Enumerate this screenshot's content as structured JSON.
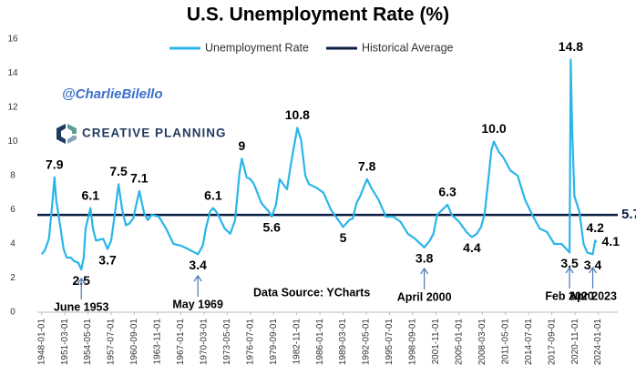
{
  "chart_data": {
    "type": "line",
    "title": "U.S. Unemployment Rate (%)",
    "x": [
      "1948-01-01",
      "1948-06-01",
      "1949-01-01",
      "1949-06-01",
      "1949-10-01",
      "1950-01-01",
      "1950-06-01",
      "1951-01-01",
      "1951-06-01",
      "1952-01-01",
      "1952-06-01",
      "1953-01-01",
      "1953-06-01",
      "1953-10-01",
      "1954-01-01",
      "1954-09-01",
      "1955-01-01",
      "1955-06-01",
      "1956-06-01",
      "1957-01-01",
      "1957-07-01",
      "1958-01-01",
      "1958-07-01",
      "1959-01-01",
      "1959-07-01",
      "1960-01-01",
      "1960-07-01",
      "1961-05-01",
      "1962-01-01",
      "1962-07-01",
      "1963-01-01",
      "1964-01-01",
      "1965-01-01",
      "1966-01-01",
      "1967-01-01",
      "1968-01-01",
      "1969-05-01",
      "1970-01-01",
      "1970-06-01",
      "1971-01-01",
      "1971-06-01",
      "1972-01-01",
      "1973-01-01",
      "1973-10-01",
      "1974-06-01",
      "1975-01-01",
      "1975-05-01",
      "1976-01-01",
      "1976-07-01",
      "1977-01-01",
      "1978-01-01",
      "1979-01-01",
      "1979-06-01",
      "1980-01-01",
      "1980-07-01",
      "1981-01-01",
      "1981-07-01",
      "1982-01-01",
      "1982-06-01",
      "1982-12-01",
      "1983-06-01",
      "1984-01-01",
      "1984-07-01",
      "1985-07-01",
      "1986-07-01",
      "1987-07-01",
      "1988-07-01",
      "1989-03-01",
      "1990-01-01",
      "1990-07-01",
      "1991-01-01",
      "1991-07-01",
      "1992-06-01",
      "1993-01-01",
      "1994-01-01",
      "1995-01-01",
      "1996-01-01",
      "1997-01-01",
      "1998-01-01",
      "1999-01-01",
      "2000-04-01",
      "2001-01-01",
      "2001-07-01",
      "2002-01-01",
      "2003-06-01",
      "2004-01-01",
      "2005-01-01",
      "2006-01-01",
      "2006-10-01",
      "2007-06-01",
      "2008-01-01",
      "2008-07-01",
      "2009-01-01",
      "2009-06-01",
      "2009-10-01",
      "2010-06-01",
      "2011-01-01",
      "2012-01-01",
      "2013-01-01",
      "2014-01-01",
      "2015-01-01",
      "2016-01-01",
      "2017-01-01",
      "2018-01-01",
      "2019-01-01",
      "2020-02-01",
      "2020-04-01",
      "2020-06-01",
      "2020-10-01",
      "2021-06-01",
      "2022-01-01",
      "2022-07-01",
      "2023-04-01",
      "2023-08-01",
      "2023-10-01"
    ],
    "series": [
      {
        "name": "Unemployment Rate",
        "color": "#29b5e8",
        "values": [
          3.4,
          3.6,
          4.3,
          6.2,
          7.9,
          6.5,
          5.4,
          3.7,
          3.2,
          3.2,
          3.0,
          2.9,
          2.5,
          3.2,
          4.9,
          6.1,
          4.9,
          4.2,
          4.3,
          3.7,
          4.2,
          5.8,
          7.5,
          6.0,
          5.1,
          5.2,
          5.5,
          7.1,
          5.8,
          5.4,
          5.7,
          5.6,
          4.9,
          4.0,
          3.9,
          3.7,
          3.4,
          3.9,
          4.9,
          5.9,
          6.1,
          5.8,
          4.9,
          4.6,
          5.4,
          8.1,
          9.0,
          7.9,
          7.8,
          7.5,
          6.4,
          5.9,
          5.6,
          6.3,
          7.8,
          7.5,
          7.2,
          8.6,
          9.6,
          10.8,
          10.1,
          8.0,
          7.5,
          7.3,
          7.0,
          6.0,
          5.4,
          5.0,
          5.4,
          5.5,
          6.4,
          6.8,
          7.8,
          7.3,
          6.6,
          5.6,
          5.6,
          5.3,
          4.6,
          4.3,
          3.8,
          4.2,
          4.6,
          5.7,
          6.3,
          5.7,
          5.3,
          4.7,
          4.4,
          4.6,
          5.0,
          5.8,
          7.8,
          9.5,
          10.0,
          9.4,
          9.1,
          8.3,
          8.0,
          6.6,
          5.7,
          4.9,
          4.7,
          4.0,
          4.0,
          3.5,
          14.8,
          11.0,
          6.8,
          5.9,
          4.0,
          3.5,
          3.4,
          4.2,
          4.1
        ]
      }
    ],
    "reference_line": {
      "name": "Historical Average",
      "color": "#0b1f45",
      "value": 5.7
    },
    "xlim": [
      "1947-06-01",
      "2026-09-01"
    ],
    "xticks": [
      "1948-01-01",
      "1951-03-01",
      "1954-05-01",
      "1957-07-01",
      "1960-09-01",
      "1963-11-01",
      "1967-01-01",
      "1970-03-01",
      "1973-05-01",
      "1976-07-01",
      "1979-09-01",
      "1982-11-01",
      "1986-01-01",
      "1989-03-01",
      "1992-05-01",
      "1995-07-01",
      "1998-09-01",
      "2001-11-01",
      "2005-01-01",
      "2008-03-01",
      "2011-05-01",
      "2014-07-01",
      "2017-09-01",
      "2020-11-01",
      "2024-01-01"
    ],
    "ylim": [
      0,
      16
    ],
    "yticks": [
      0,
      2,
      4,
      6,
      8,
      10,
      12,
      14,
      16
    ],
    "grid": false,
    "legend": "top",
    "annotations": [
      {
        "x": "1949-10-01",
        "y": 7.9,
        "position": "above"
      },
      {
        "x": "1953-06-01",
        "y": 2.5,
        "position": "below"
      },
      {
        "x": "1954-09-01",
        "y": 6.1,
        "position": "above"
      },
      {
        "x": "1957-01-01",
        "y": 3.7,
        "position": "below"
      },
      {
        "x": "1958-07-01",
        "y": 7.5,
        "position": "above"
      },
      {
        "x": "1961-05-01",
        "y": 7.1,
        "position": "above"
      },
      {
        "x": "1969-05-01",
        "y": 3.4,
        "position": "below"
      },
      {
        "x": "1971-06-01",
        "y": 6.1,
        "position": "above"
      },
      {
        "x": "1975-05-01",
        "y": 9,
        "position": "above"
      },
      {
        "x": "1979-06-01",
        "y": 5.6,
        "position": "below"
      },
      {
        "x": "1982-12-01",
        "y": 10.8,
        "position": "above"
      },
      {
        "x": "1989-03-01",
        "y": 5,
        "position": "below"
      },
      {
        "x": "1992-06-01",
        "y": 7.8,
        "position": "above"
      },
      {
        "x": "2000-04-01",
        "y": 3.8,
        "position": "below"
      },
      {
        "x": "2003-06-01",
        "y": 6.3,
        "position": "above"
      },
      {
        "x": "2006-10-01",
        "y": 4.4,
        "position": "below"
      },
      {
        "x": "2009-10-01",
        "y": 10,
        "label": "10.0",
        "position": "above"
      },
      {
        "x": "2020-02-01",
        "y": 3.5,
        "position": "below"
      },
      {
        "x": "2020-04-01",
        "y": 14.8,
        "position": "above"
      },
      {
        "x": "2023-04-01",
        "y": 3.4,
        "position": "below"
      },
      {
        "x": "2023-08-01",
        "y": 4.2,
        "position": "above"
      },
      {
        "x": "2023-10-01",
        "y": 4.1,
        "position": "right"
      }
    ],
    "date_captions": [
      {
        "x": "1953-06-01",
        "text": "June 1953"
      },
      {
        "x": "1969-05-01",
        "text": "May 1969"
      },
      {
        "x": "2000-04-01",
        "text": "April 2000"
      },
      {
        "x": "2020-02-01",
        "text": "Feb 2020"
      },
      {
        "x": "2023-04-01",
        "text": "Apr 2023"
      }
    ],
    "handle": "@CharlieBilello",
    "brand": "CREATIVE PLANNING",
    "source": "Data Source: YCharts"
  }
}
